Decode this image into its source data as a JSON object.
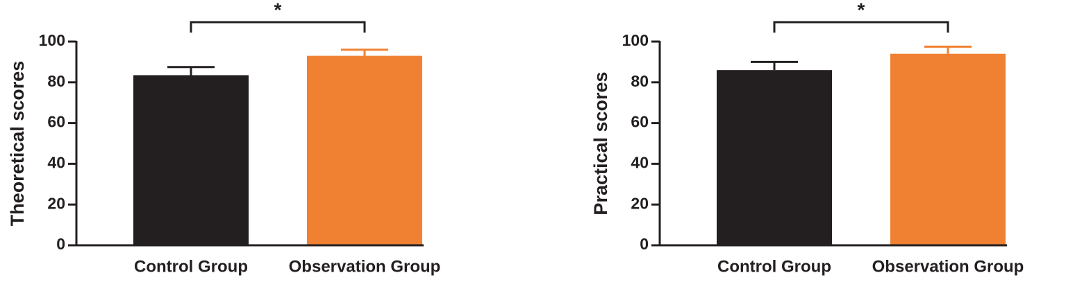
{
  "chart_data": [
    {
      "type": "bar",
      "ylabel": "Theoretical scores",
      "categories": [
        "Control Group",
        "Observation Group"
      ],
      "values": [
        83.5,
        93
      ],
      "errors": [
        4,
        3
      ],
      "colors": [
        "#231f20",
        "#f08132"
      ],
      "ylim": [
        0,
        100
      ],
      "yticks": [
        0,
        20,
        40,
        60,
        80,
        100
      ],
      "annotation": "*"
    },
    {
      "type": "bar",
      "ylabel": "Practical scores",
      "categories": [
        "Control Group",
        "Observation Group"
      ],
      "values": [
        86,
        94
      ],
      "errors": [
        4,
        3.5
      ],
      "colors": [
        "#231f20",
        "#f08132"
      ],
      "ylim": [
        0,
        100
      ],
      "yticks": [
        0,
        20,
        40,
        60,
        80,
        100
      ],
      "annotation": "*"
    }
  ]
}
